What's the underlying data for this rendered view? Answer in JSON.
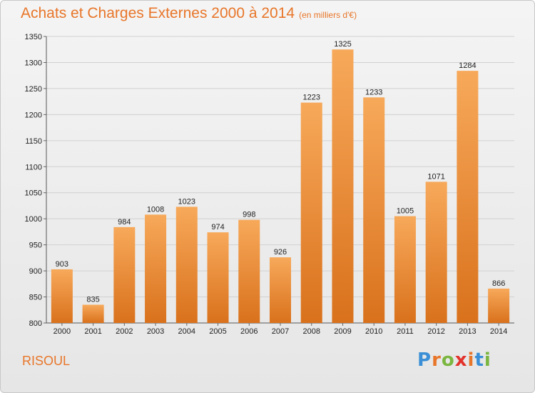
{
  "header": {
    "title": "Achats et Charges Externes 2000 à 2014",
    "subtitle": "(en milliers d'€)"
  },
  "footer": {
    "place": "RISOUL",
    "logo_text": "Proxiti"
  },
  "colors": {
    "title": "#e8762a",
    "bar_light": "#f7a95a",
    "bar_dark": "#d9711c",
    "logo_letters": [
      "#3a8fd6",
      "#e8762a",
      "#7ab640",
      "#e2322b",
      "#e8762a",
      "#3a8fd6",
      "#7ab640"
    ]
  },
  "chart_data": {
    "type": "bar",
    "title": "Achats et Charges Externes 2000 à 2014",
    "subtitle": "(en milliers d'€)",
    "categories": [
      "2000",
      "2001",
      "2002",
      "2003",
      "2004",
      "2005",
      "2006",
      "2007",
      "2008",
      "2009",
      "2010",
      "2011",
      "2012",
      "2013",
      "2014"
    ],
    "values": [
      903,
      835,
      984,
      1008,
      1023,
      974,
      998,
      926,
      1223,
      1325,
      1233,
      1005,
      1071,
      1284,
      866
    ],
    "ylim": [
      800,
      1350
    ],
    "yticks": [
      800,
      850,
      900,
      950,
      1000,
      1050,
      1100,
      1150,
      1200,
      1250,
      1300,
      1350
    ],
    "grid": true,
    "data_labels": true
  }
}
